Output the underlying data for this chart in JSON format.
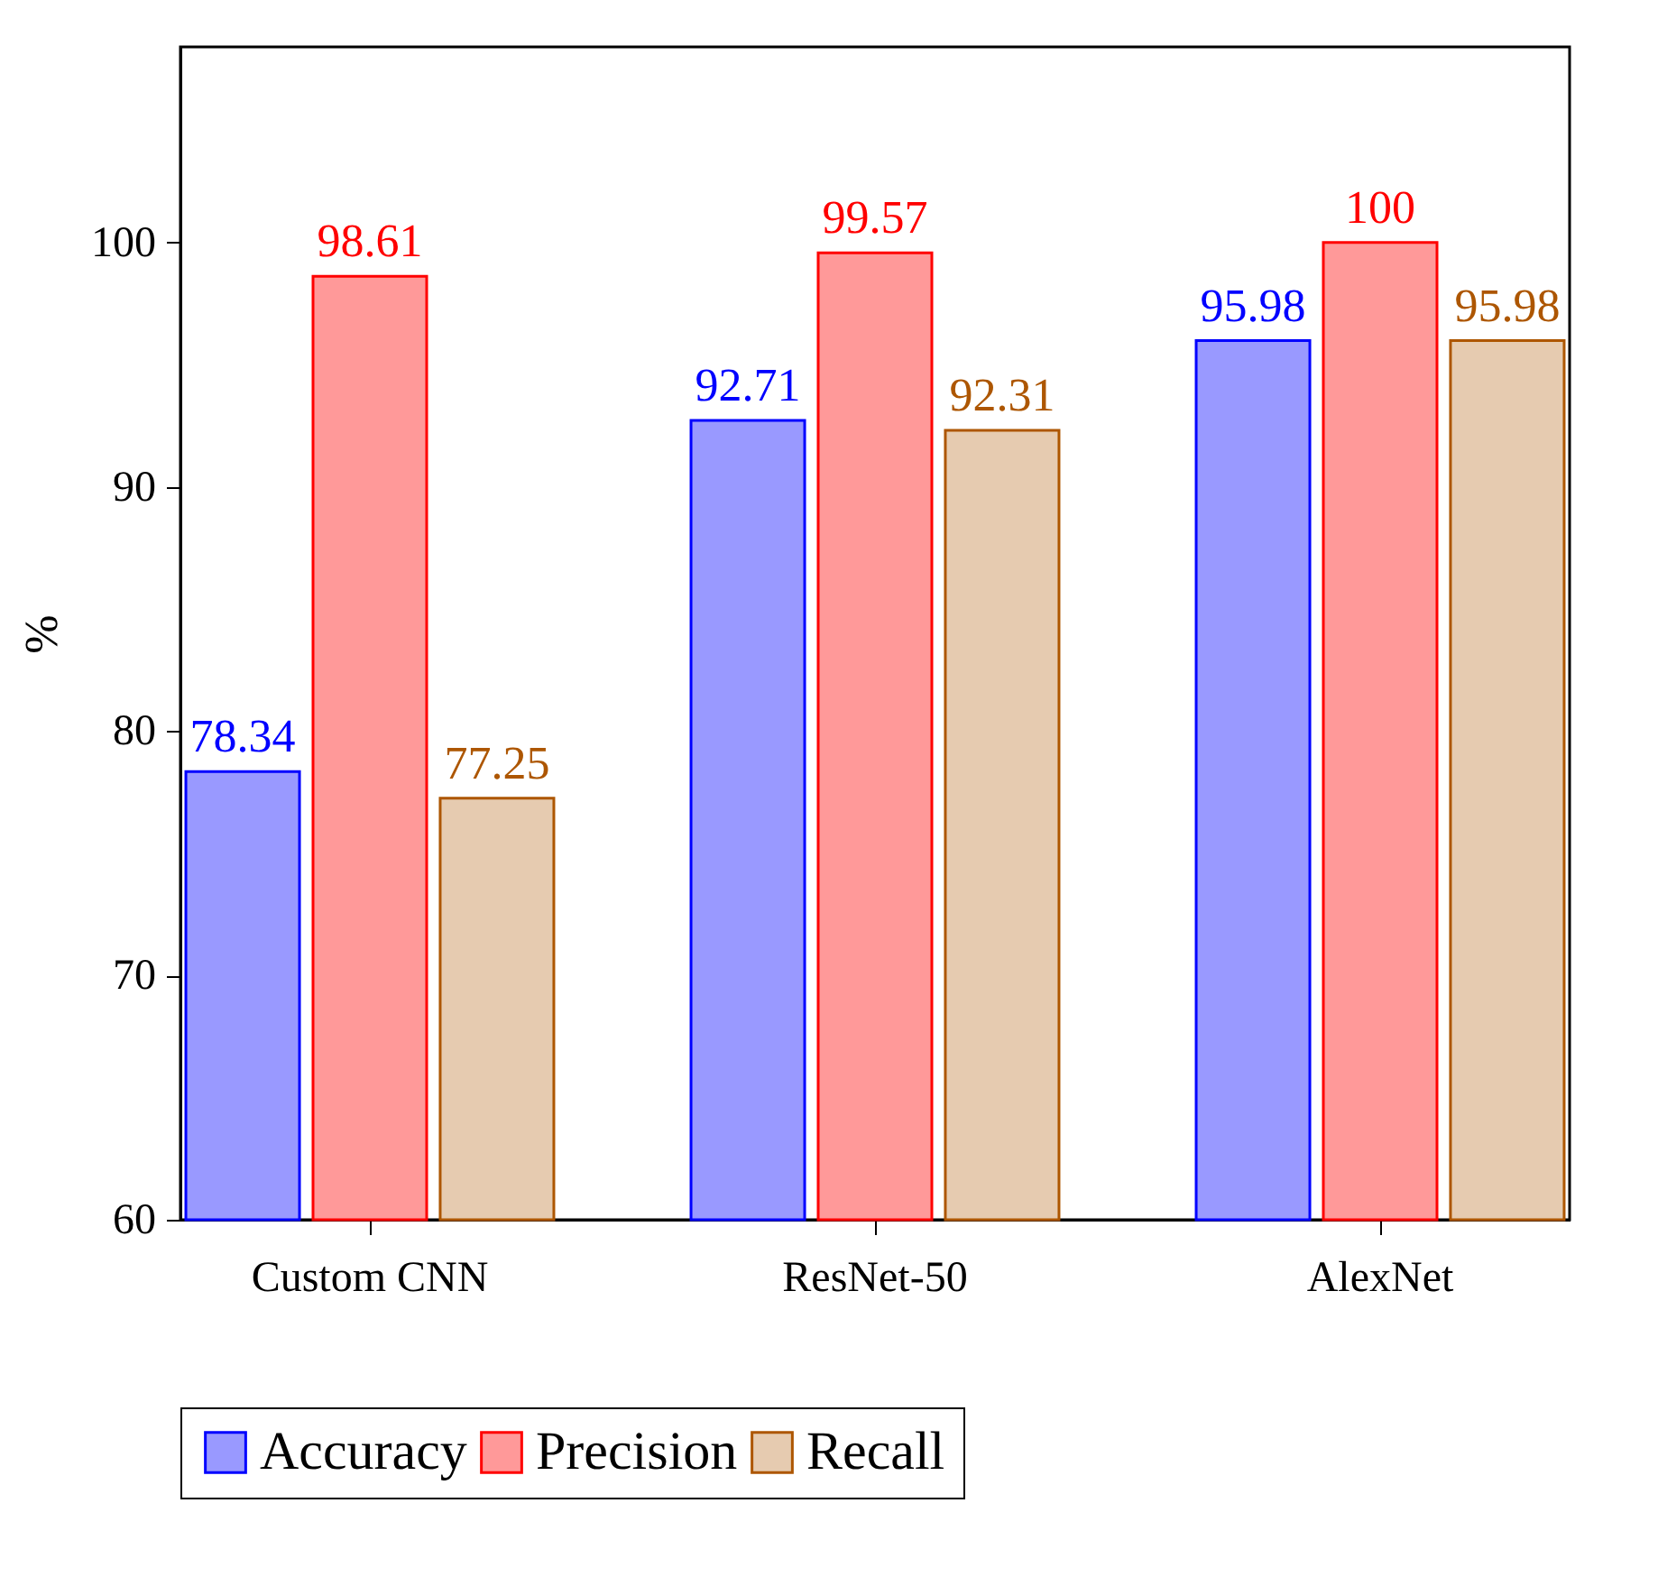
{
  "chart_data": {
    "type": "bar",
    "ylabel": "%",
    "categories": [
      "Custom CNN",
      "ResNet-50",
      "AlexNet"
    ],
    "series": [
      {
        "name": "Accuracy",
        "color": "#9999ff",
        "values": [
          78.34,
          92.71,
          95.98
        ]
      },
      {
        "name": "Precision",
        "color": "#ff9999",
        "values": [
          98.61,
          99.57,
          100
        ]
      },
      {
        "name": "Recall",
        "color": "#e6cbb0",
        "values": [
          77.25,
          92.31,
          95.98
        ]
      }
    ],
    "ylim": [
      60,
      108
    ],
    "yticks": [
      60,
      70,
      80,
      90,
      100
    ],
    "data_labels": true,
    "legend": "bottom",
    "grid": false
  }
}
